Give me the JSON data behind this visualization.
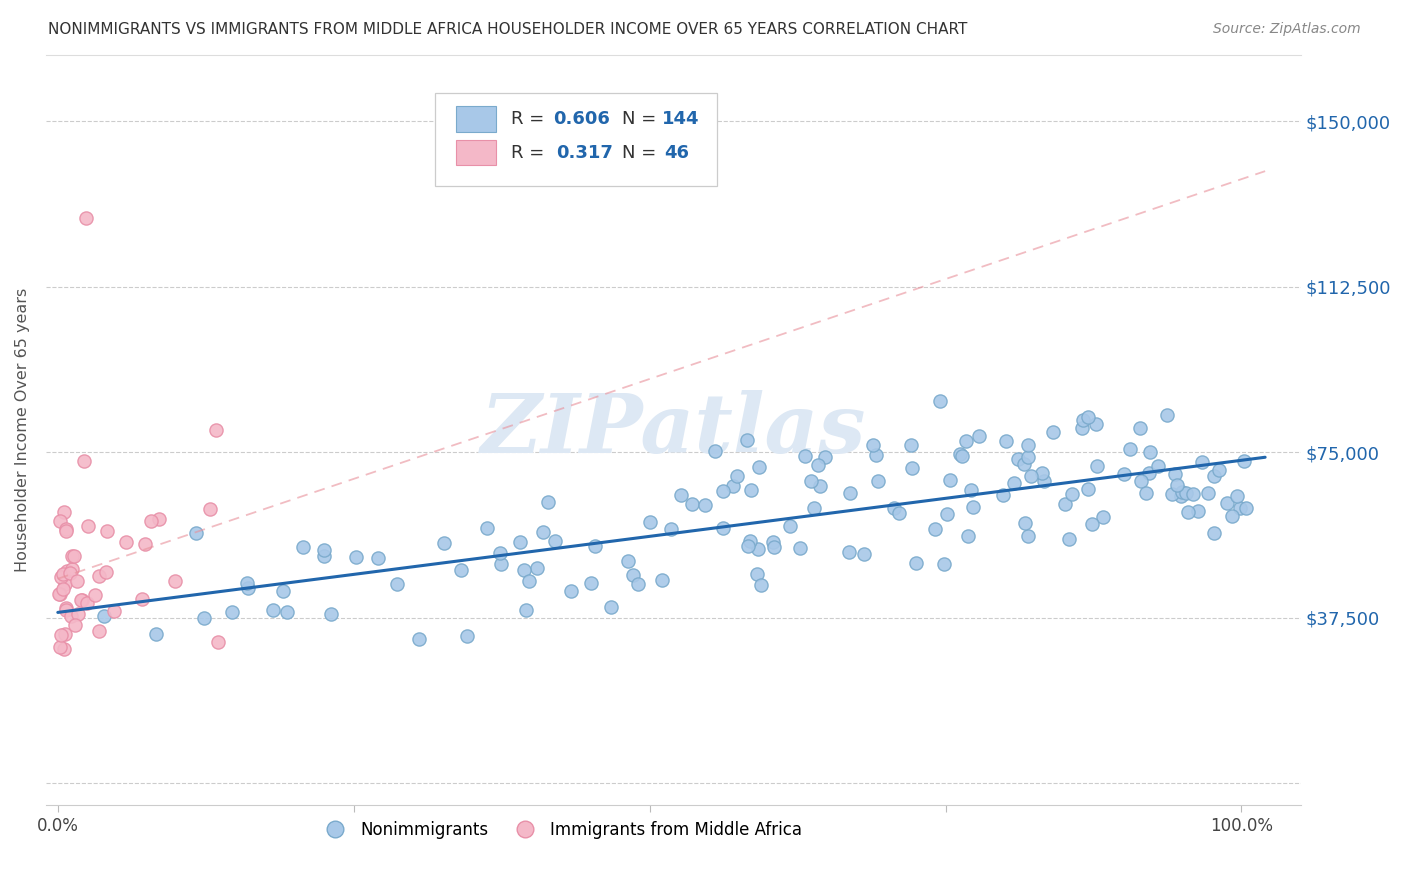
{
  "title": "NONIMMIGRANTS VS IMMIGRANTS FROM MIDDLE AFRICA HOUSEHOLDER INCOME OVER 65 YEARS CORRELATION CHART",
  "source": "Source: ZipAtlas.com",
  "ylabel": "Householder Income Over 65 years",
  "color_blue": "#a8c8e8",
  "color_blue_edge": "#7aaacc",
  "color_pink": "#f4b8c8",
  "color_pink_edge": "#e890a8",
  "color_blue_text": "#2166ac",
  "trend_blue": "#2166ac",
  "trend_pink": "#e8909a",
  "watermark_color": "#dde8f4",
  "yticks": [
    0,
    37500,
    75000,
    112500,
    150000
  ],
  "ytick_labels": [
    "",
    "$37,500",
    "$75,000",
    "$112,500",
    "$150,000"
  ]
}
